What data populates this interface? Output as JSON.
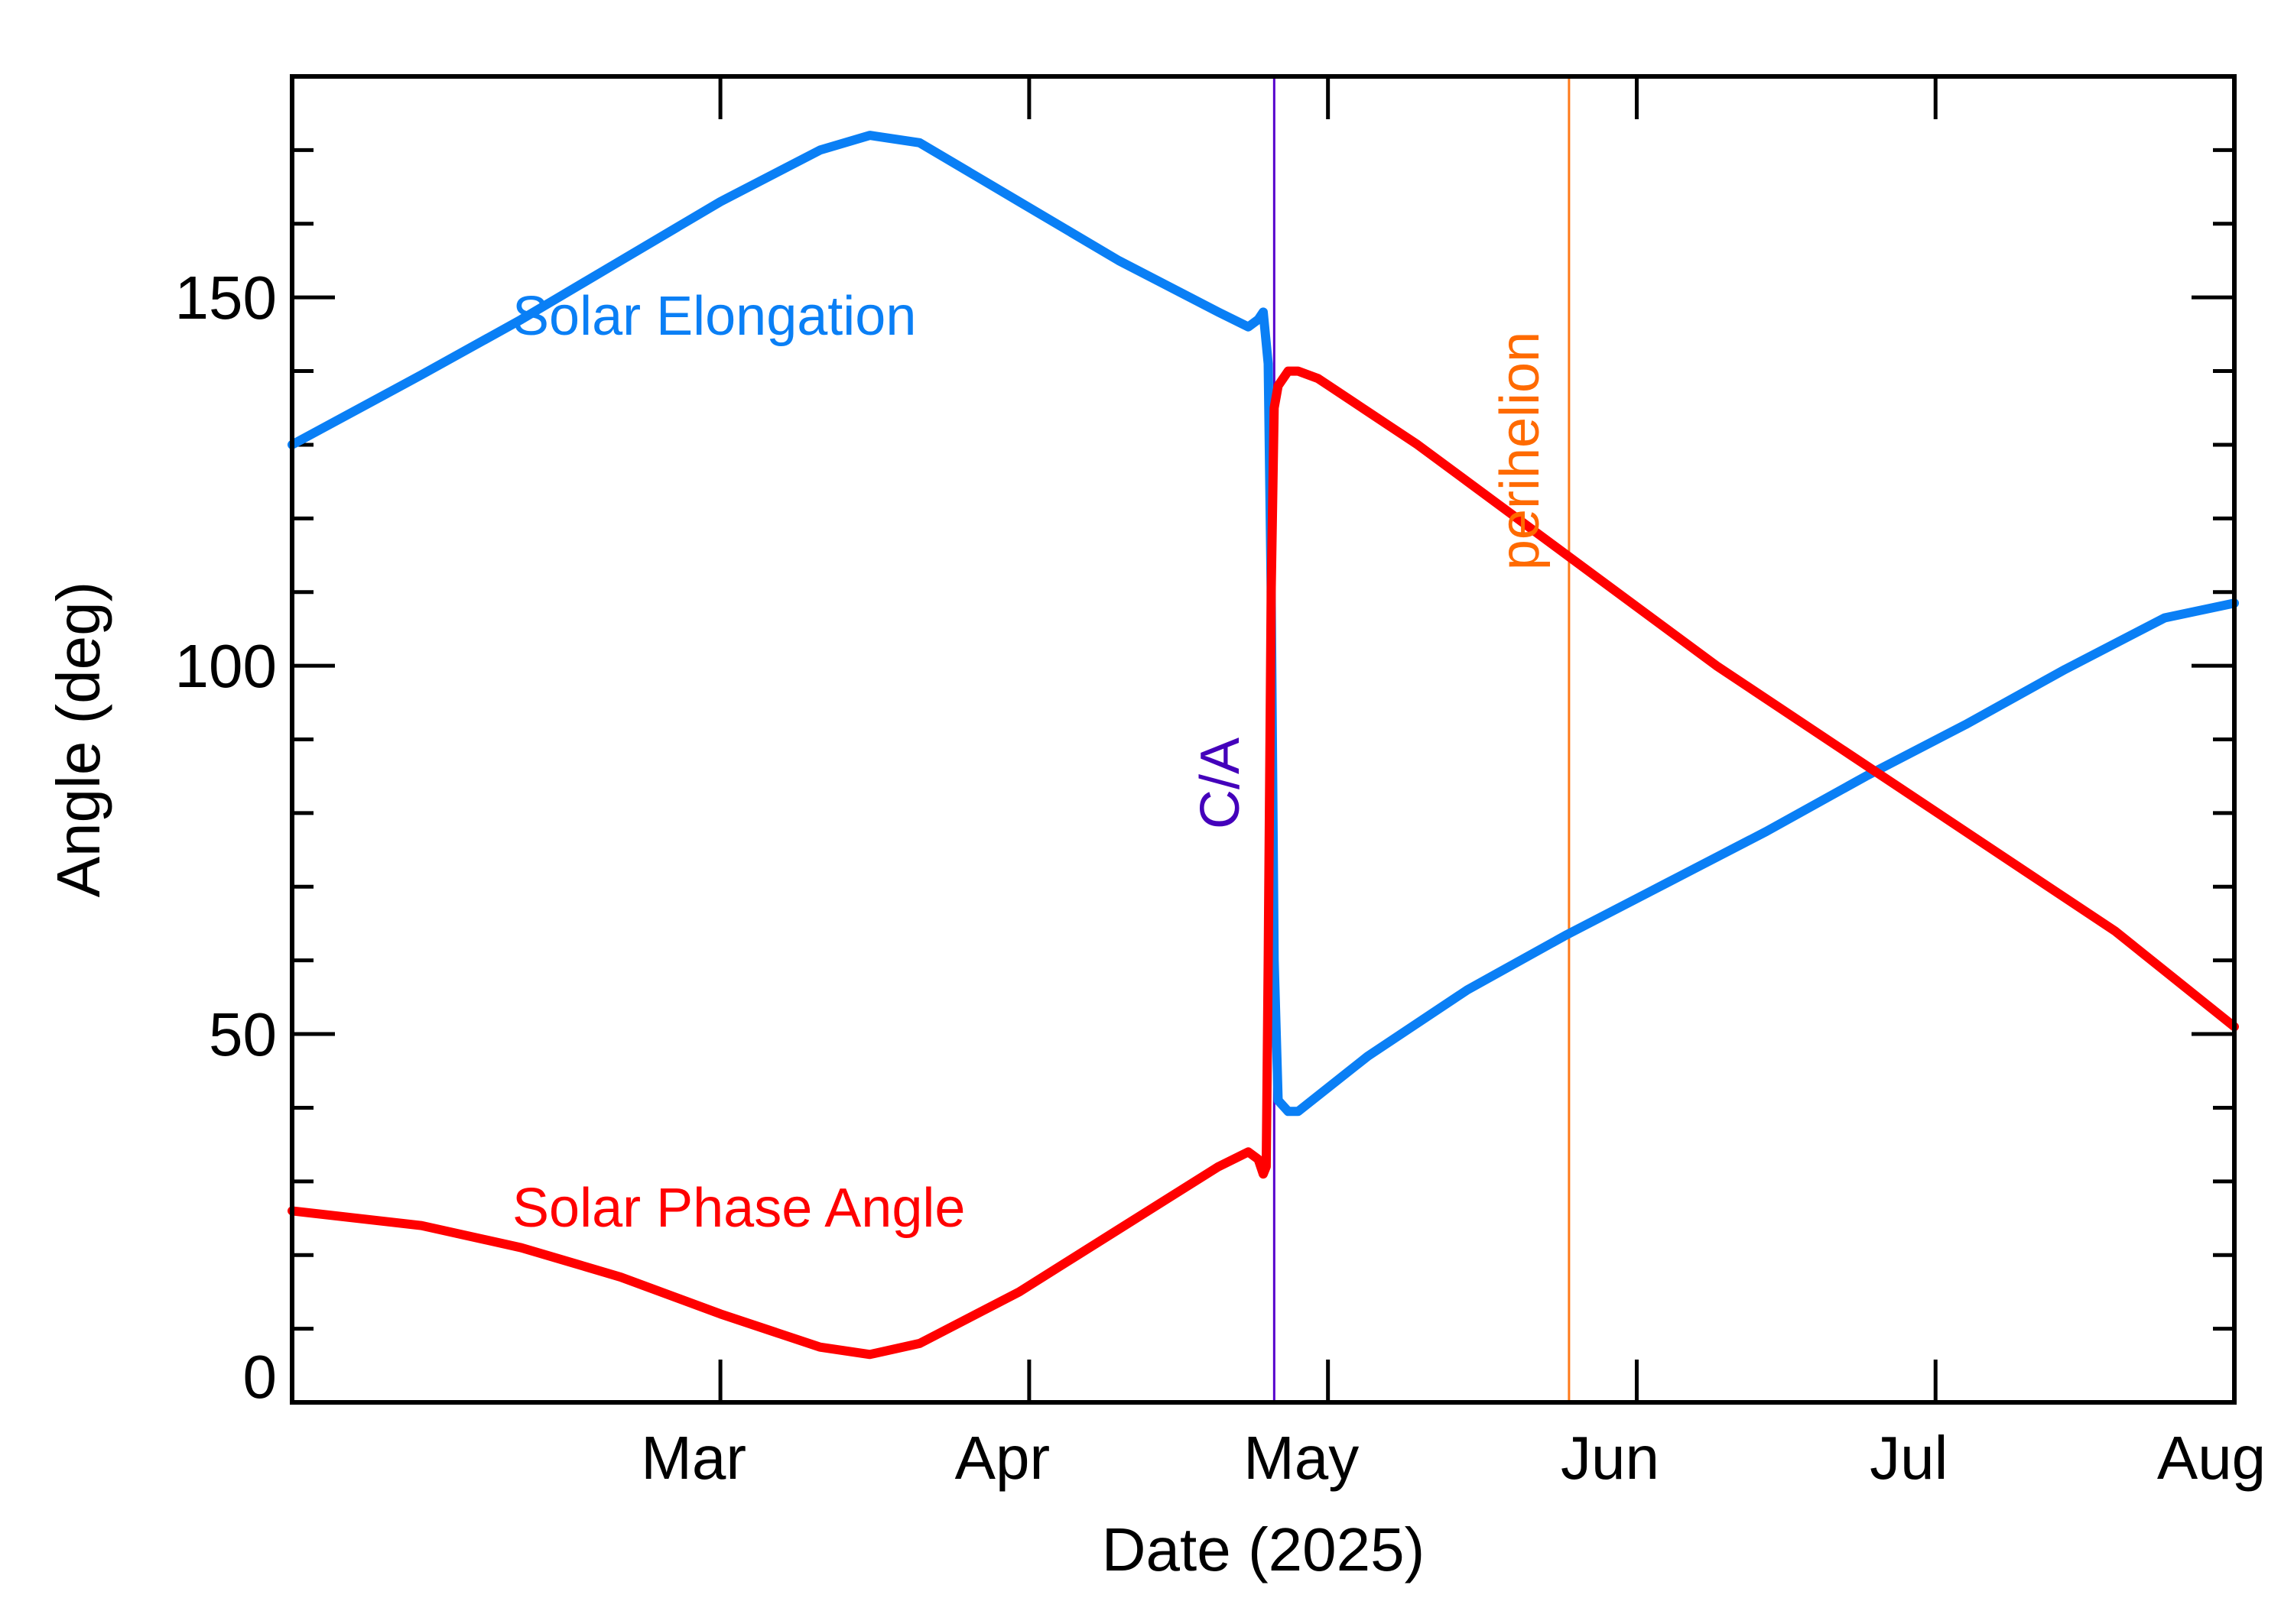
{
  "chart_data": {
    "type": "line",
    "title": "",
    "xlabel": "Date (2025)",
    "ylabel": "Angle (deg)",
    "xlim": [
      17.0,
      212.0
    ],
    "ylim": [
      0,
      180
    ],
    "x_unit": "day of year 2025",
    "month_ticks": [
      {
        "label": "Mar",
        "day": 60
      },
      {
        "label": "Apr",
        "day": 91
      },
      {
        "label": "May",
        "day": 121
      },
      {
        "label": "Jun",
        "day": 152
      },
      {
        "label": "Jul",
        "day": 182
      },
      {
        "label": "Aug",
        "day": 213
      }
    ],
    "y_major_ticks": [
      {
        "label": "0",
        "value": 0
      },
      {
        "label": "50",
        "value": 50
      },
      {
        "label": "100",
        "value": 100
      },
      {
        "label": "150",
        "value": 150
      }
    ],
    "y_minor_step": 10,
    "series": [
      {
        "name": "Solar Elongation",
        "color": "#0a7ff5",
        "x": [
          17,
          30,
          40,
          50,
          60,
          70,
          75,
          80,
          90,
          100,
          110,
          113,
          114,
          114.5,
          115,
          115.3,
          115.6,
          116,
          117,
          118,
          125,
          135,
          145,
          155,
          165,
          175,
          185,
          195,
          205,
          212
        ],
        "values": [
          130,
          139.5,
          147,
          155,
          163,
          170,
          172,
          171,
          163,
          155,
          148,
          146,
          147,
          148,
          141,
          110,
          60,
          41,
          39.5,
          39.5,
          47,
          56,
          63.5,
          70.5,
          77.5,
          85,
          92,
          99.5,
          106.5,
          108.5
        ]
      },
      {
        "name": "Solar Phase Angle",
        "color": "#ff0000",
        "x": [
          17,
          30,
          40,
          50,
          60,
          70,
          75,
          80,
          90,
          100,
          110,
          113,
          114,
          114.5,
          114.8,
          115,
          115.3,
          115.6,
          116,
          117,
          118,
          120,
          130,
          140,
          150,
          160,
          170,
          180,
          190,
          200,
          212
        ],
        "values": [
          26,
          24,
          21,
          17,
          12,
          7.5,
          6.5,
          8,
          15,
          23.5,
          32,
          34,
          33,
          31,
          32,
          60,
          110,
          135,
          138,
          140,
          140,
          139,
          130,
          120,
          110,
          100,
          91,
          82,
          73,
          64,
          51
        ]
      }
    ],
    "annotations": [
      {
        "text": "Solar Elongation",
        "color": "#0a7ff5"
      },
      {
        "text": "Solar Phase Angle",
        "color": "#ff0000"
      }
    ],
    "vertical_markers": [
      {
        "label": "C/A",
        "day": 115.6,
        "color": "#5500cc",
        "label_color": "#4400bb"
      },
      {
        "label": "perihelion",
        "day": 145.2,
        "color": "#ff7a1a",
        "label_color": "#ff6a00"
      }
    ]
  }
}
